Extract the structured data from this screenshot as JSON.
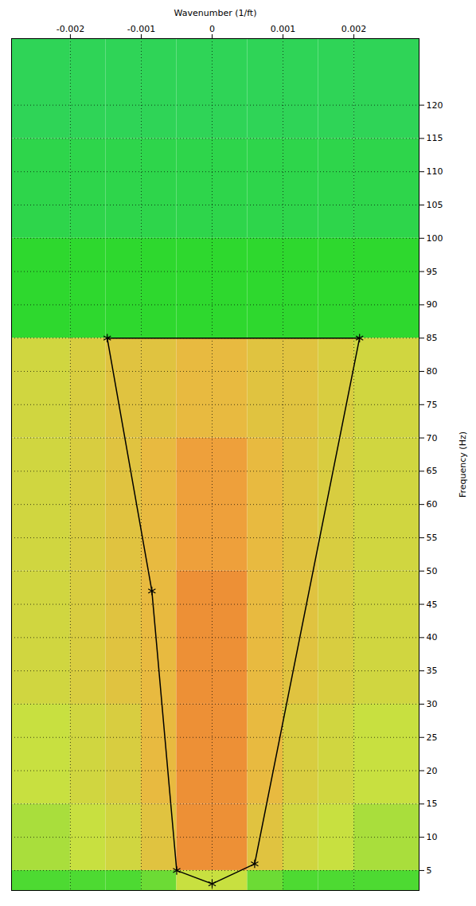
{
  "chart_data": {
    "type": "heatmap",
    "x_label": "Wavenumber (1/ft)",
    "y_label": "Frequency (Hz)",
    "xlim": [
      -0.00283,
      0.00292
    ],
    "ylim": [
      2,
      130
    ],
    "xticks": [
      -0.002,
      -0.001,
      0,
      0.001,
      0.002
    ],
    "yticks": [
      5,
      10,
      15,
      20,
      25,
      30,
      35,
      40,
      45,
      50,
      55,
      60,
      65,
      70,
      75,
      80,
      85,
      90,
      95,
      100,
      105,
      110,
      115,
      120
    ],
    "grid": true,
    "cells": {
      "x_edges": [
        -0.00283,
        -0.002,
        -0.0015,
        -0.001,
        -0.0005,
        0,
        0.0005,
        0.001,
        0.0015,
        0.002,
        0.00292
      ],
      "y_edges": [
        2,
        5,
        15,
        30,
        50,
        70,
        85,
        100,
        115,
        130
      ],
      "values": [
        [
          0.3,
          0.3,
          0.3,
          0.35,
          0.5,
          0.5,
          0.35,
          0.3,
          0.3,
          0.3
        ],
        [
          0.45,
          0.5,
          0.55,
          0.65,
          0.85,
          0.85,
          0.65,
          0.55,
          0.5,
          0.45
        ],
        [
          0.5,
          0.55,
          0.6,
          0.7,
          0.85,
          0.85,
          0.7,
          0.6,
          0.55,
          0.5
        ],
        [
          0.55,
          0.6,
          0.65,
          0.7,
          0.85,
          0.85,
          0.7,
          0.65,
          0.6,
          0.55
        ],
        [
          0.55,
          0.6,
          0.65,
          0.7,
          0.8,
          0.8,
          0.7,
          0.65,
          0.6,
          0.55
        ],
        [
          0.55,
          0.6,
          0.65,
          0.65,
          0.7,
          0.7,
          0.65,
          0.65,
          0.6,
          0.55
        ],
        [
          0.25,
          0.25,
          0.25,
          0.25,
          0.25,
          0.25,
          0.25,
          0.25,
          0.25,
          0.25
        ],
        [
          0.2,
          0.2,
          0.2,
          0.2,
          0.2,
          0.2,
          0.2,
          0.2,
          0.2,
          0.2
        ],
        [
          0.18,
          0.18,
          0.18,
          0.18,
          0.18,
          0.18,
          0.18,
          0.18,
          0.18,
          0.18
        ]
      ],
      "zlim": [
        0,
        1
      ],
      "colors": [
        "#30c8c0",
        "#2ed82e",
        "#c8e040",
        "#f0b040",
        "#e86028"
      ]
    },
    "series": [
      {
        "type": "polygon",
        "color": "#000000",
        "marker": "asterisk",
        "line_style": "solid",
        "x": [
          -0.00148,
          -0.00085,
          -0.0005,
          0,
          0.0006,
          0.00208
        ],
        "values": [
          85,
          47,
          5,
          3,
          6,
          85
        ]
      }
    ]
  }
}
